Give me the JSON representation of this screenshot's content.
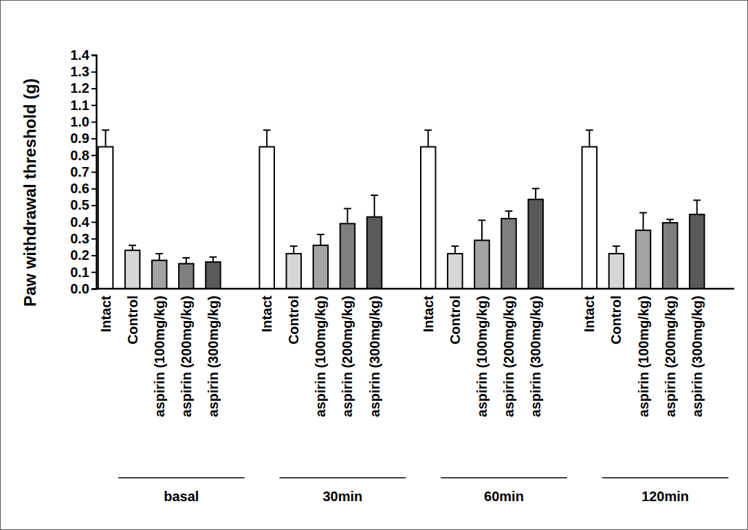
{
  "chart_data": {
    "type": "bar",
    "y_label": "Paw withdrawal threshold (g)",
    "categories": [
      "basal",
      "30min",
      "60min",
      "120min"
    ],
    "series": [
      {
        "name": "Intact",
        "color": "#ffffff",
        "values": [
          0.85,
          0.85,
          0.85,
          0.85
        ],
        "errors": [
          0.1,
          0.1,
          0.1,
          0.1
        ]
      },
      {
        "name": "Control",
        "color": "#d6d6d6",
        "values": [
          0.23,
          0.21,
          0.21,
          0.21
        ],
        "errors": [
          0.03,
          0.045,
          0.045,
          0.045
        ]
      },
      {
        "name": "aspirin (100mg/kg)",
        "color": "#a3a3a3",
        "values": [
          0.17,
          0.26,
          0.29,
          0.35
        ],
        "errors": [
          0.04,
          0.065,
          0.12,
          0.105
        ]
      },
      {
        "name": "aspirin (200mg/kg)",
        "color": "#7f7f7f",
        "values": [
          0.15,
          0.39,
          0.42,
          0.395
        ],
        "errors": [
          0.035,
          0.09,
          0.045,
          0.02
        ]
      },
      {
        "name": "aspirin (300mg/kg)",
        "color": "#595959",
        "values": [
          0.16,
          0.43,
          0.535,
          0.445
        ],
        "errors": [
          0.03,
          0.13,
          0.065,
          0.085
        ]
      }
    ],
    "ylim": [
      0,
      1.4
    ],
    "yticks": [
      {
        "value": 0,
        "label": "0.0"
      },
      0.1,
      0.2,
      0.3,
      0.4,
      0.5,
      0.6,
      0.7,
      0.8,
      0.9,
      {
        "value": 1,
        "label": "1.0"
      },
      1.1,
      1.2,
      1.3,
      1.4
    ],
    "grid": false
  }
}
